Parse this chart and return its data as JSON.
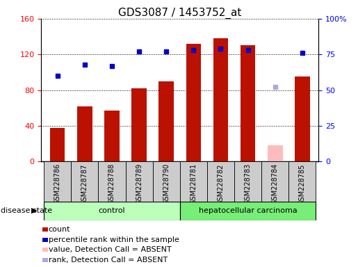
{
  "title": "GDS3087 / 1453752_at",
  "samples": [
    "GSM228786",
    "GSM228787",
    "GSM228788",
    "GSM228789",
    "GSM228790",
    "GSM228781",
    "GSM228782",
    "GSM228783",
    "GSM228784",
    "GSM228785"
  ],
  "counts": [
    38,
    62,
    57,
    82,
    90,
    132,
    138,
    130,
    18,
    95
  ],
  "count_absent": [
    false,
    false,
    false,
    false,
    false,
    false,
    false,
    false,
    true,
    false
  ],
  "percentile_ranks": [
    60,
    68,
    67,
    77,
    77,
    78,
    79,
    78,
    52,
    76
  ],
  "rank_absent": [
    false,
    false,
    false,
    false,
    false,
    false,
    false,
    false,
    true,
    false
  ],
  "ylim_left": [
    0,
    160
  ],
  "ylim_right": [
    0,
    100
  ],
  "yticks_left": [
    0,
    40,
    80,
    120,
    160
  ],
  "ytick_labels_left": [
    "0",
    "40",
    "80",
    "120",
    "160"
  ],
  "ytick_labels_right": [
    "0",
    "25",
    "50",
    "75",
    "100%"
  ],
  "bar_color": "#bb1100",
  "bar_color_absent": "#ffbbbb",
  "dot_color": "#0000cc",
  "dot_color_absent": "#aaaadd",
  "control_samples": 5,
  "control_label": "control",
  "disease_label": "hepatocellular carcinoma",
  "disease_state_label": "disease state",
  "control_bg": "#bbffbb",
  "disease_bg": "#77ee77",
  "xticklabel_bg": "#cccccc",
  "title_fontsize": 11,
  "tick_fontsize": 8,
  "legend_fontsize": 8
}
